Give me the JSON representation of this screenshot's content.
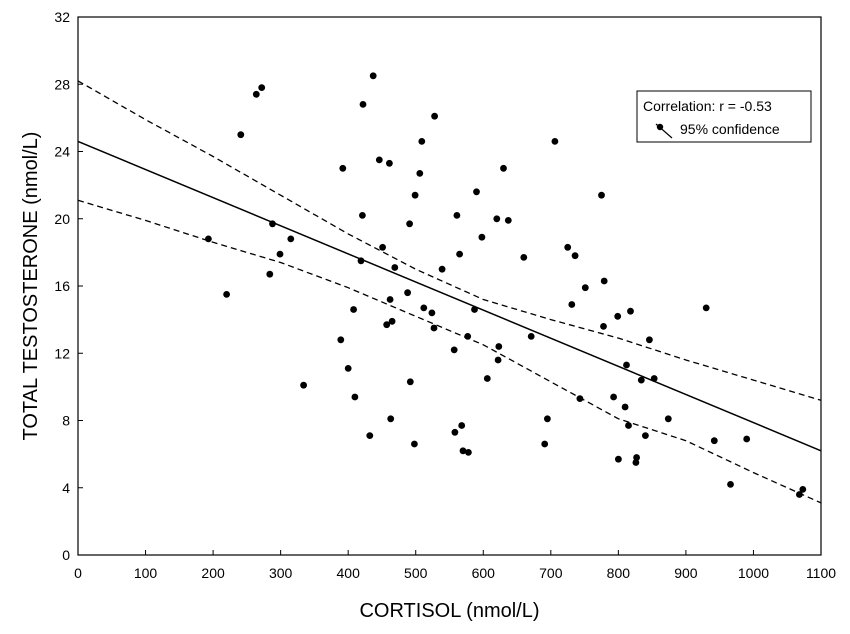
{
  "chart_data": {
    "type": "scatter",
    "title": "",
    "xlabel": "CORTISOL (nmol/L)",
    "ylabel": "TOTAL TESTOSTERONE (nmol/L)",
    "xlim": [
      0,
      1100
    ],
    "ylim": [
      0,
      32
    ],
    "xticks": [
      0,
      100,
      200,
      300,
      400,
      500,
      600,
      700,
      800,
      900,
      1000,
      1100
    ],
    "yticks": [
      0,
      4,
      8,
      12,
      16,
      20,
      24,
      28,
      32
    ],
    "grid": false,
    "legend": {
      "placement": "top-right",
      "entries": [
        "Correlation: r = -0.53",
        "95% confidence"
      ]
    },
    "regression_line": {
      "x": [
        0,
        1100
      ],
      "y": [
        24.6,
        6.2
      ]
    },
    "confidence_upper": {
      "x": [
        0,
        100,
        200,
        300,
        400,
        500,
        600,
        700,
        800,
        900,
        1000,
        1100
      ],
      "y": [
        28.2,
        25.9,
        23.7,
        21.4,
        19.1,
        17.0,
        15.2,
        14.0,
        12.9,
        11.6,
        10.4,
        9.2
      ]
    },
    "confidence_lower": {
      "x": [
        0,
        100,
        200,
        300,
        400,
        500,
        600,
        700,
        800,
        900,
        1000,
        1100
      ],
      "y": [
        21.1,
        19.9,
        18.6,
        17.4,
        15.9,
        14.2,
        12.5,
        10.3,
        8.1,
        6.8,
        4.9,
        3.1
      ]
    },
    "points": [
      [
        193,
        18.8
      ],
      [
        220,
        15.5
      ],
      [
        241,
        25.0
      ],
      [
        264,
        27.4
      ],
      [
        272,
        27.8
      ],
      [
        284,
        16.7
      ],
      [
        288,
        19.7
      ],
      [
        299,
        17.9
      ],
      [
        315,
        18.8
      ],
      [
        334,
        10.1
      ],
      [
        389,
        12.8
      ],
      [
        392,
        23.0
      ],
      [
        400,
        11.1
      ],
      [
        408,
        14.6
      ],
      [
        410,
        9.4
      ],
      [
        419,
        17.5
      ],
      [
        421,
        20.2
      ],
      [
        422,
        26.8
      ],
      [
        432,
        7.1
      ],
      [
        437,
        28.5
      ],
      [
        446,
        23.5
      ],
      [
        451,
        18.3
      ],
      [
        457,
        13.7
      ],
      [
        461,
        23.3
      ],
      [
        462,
        15.2
      ],
      [
        463,
        8.1
      ],
      [
        465,
        13.9
      ],
      [
        469,
        17.1
      ],
      [
        488,
        15.6
      ],
      [
        491,
        19.7
      ],
      [
        492,
        10.3
      ],
      [
        498,
        6.6
      ],
      [
        499,
        21.4
      ],
      [
        506,
        22.7
      ],
      [
        509,
        24.6
      ],
      [
        512,
        14.7
      ],
      [
        524,
        14.4
      ],
      [
        527,
        13.5
      ],
      [
        528,
        26.1
      ],
      [
        539,
        17.0
      ],
      [
        557,
        12.2
      ],
      [
        558,
        7.3
      ],
      [
        561,
        20.2
      ],
      [
        565,
        17.9
      ],
      [
        568,
        7.7
      ],
      [
        570,
        6.2
      ],
      [
        577,
        13.0
      ],
      [
        578,
        6.1
      ],
      [
        587,
        14.6
      ],
      [
        590,
        21.6
      ],
      [
        598,
        18.9
      ],
      [
        606,
        10.5
      ],
      [
        620,
        20.0
      ],
      [
        622,
        11.6
      ],
      [
        623,
        12.4
      ],
      [
        630,
        23.0
      ],
      [
        637,
        19.9
      ],
      [
        660,
        17.7
      ],
      [
        671,
        13.0
      ],
      [
        691,
        6.6
      ],
      [
        695,
        8.1
      ],
      [
        706,
        24.6
      ],
      [
        725,
        18.3
      ],
      [
        731,
        14.9
      ],
      [
        736,
        17.8
      ],
      [
        743,
        9.3
      ],
      [
        751,
        15.9
      ],
      [
        775,
        21.4
      ],
      [
        778,
        13.6
      ],
      [
        779,
        16.3
      ],
      [
        793,
        9.4
      ],
      [
        799,
        14.2
      ],
      [
        800,
        5.7
      ],
      [
        810,
        8.8
      ],
      [
        812,
        11.3
      ],
      [
        815,
        7.7
      ],
      [
        818,
        14.5
      ],
      [
        826,
        5.5
      ],
      [
        827,
        5.8
      ],
      [
        834,
        10.4
      ],
      [
        840,
        7.1
      ],
      [
        846,
        12.8
      ],
      [
        853,
        10.5
      ],
      [
        874,
        8.1
      ],
      [
        930,
        14.7
      ],
      [
        942,
        6.8
      ],
      [
        966,
        4.2
      ],
      [
        990,
        6.9
      ],
      [
        1068,
        3.6
      ],
      [
        1073,
        3.9
      ]
    ]
  }
}
